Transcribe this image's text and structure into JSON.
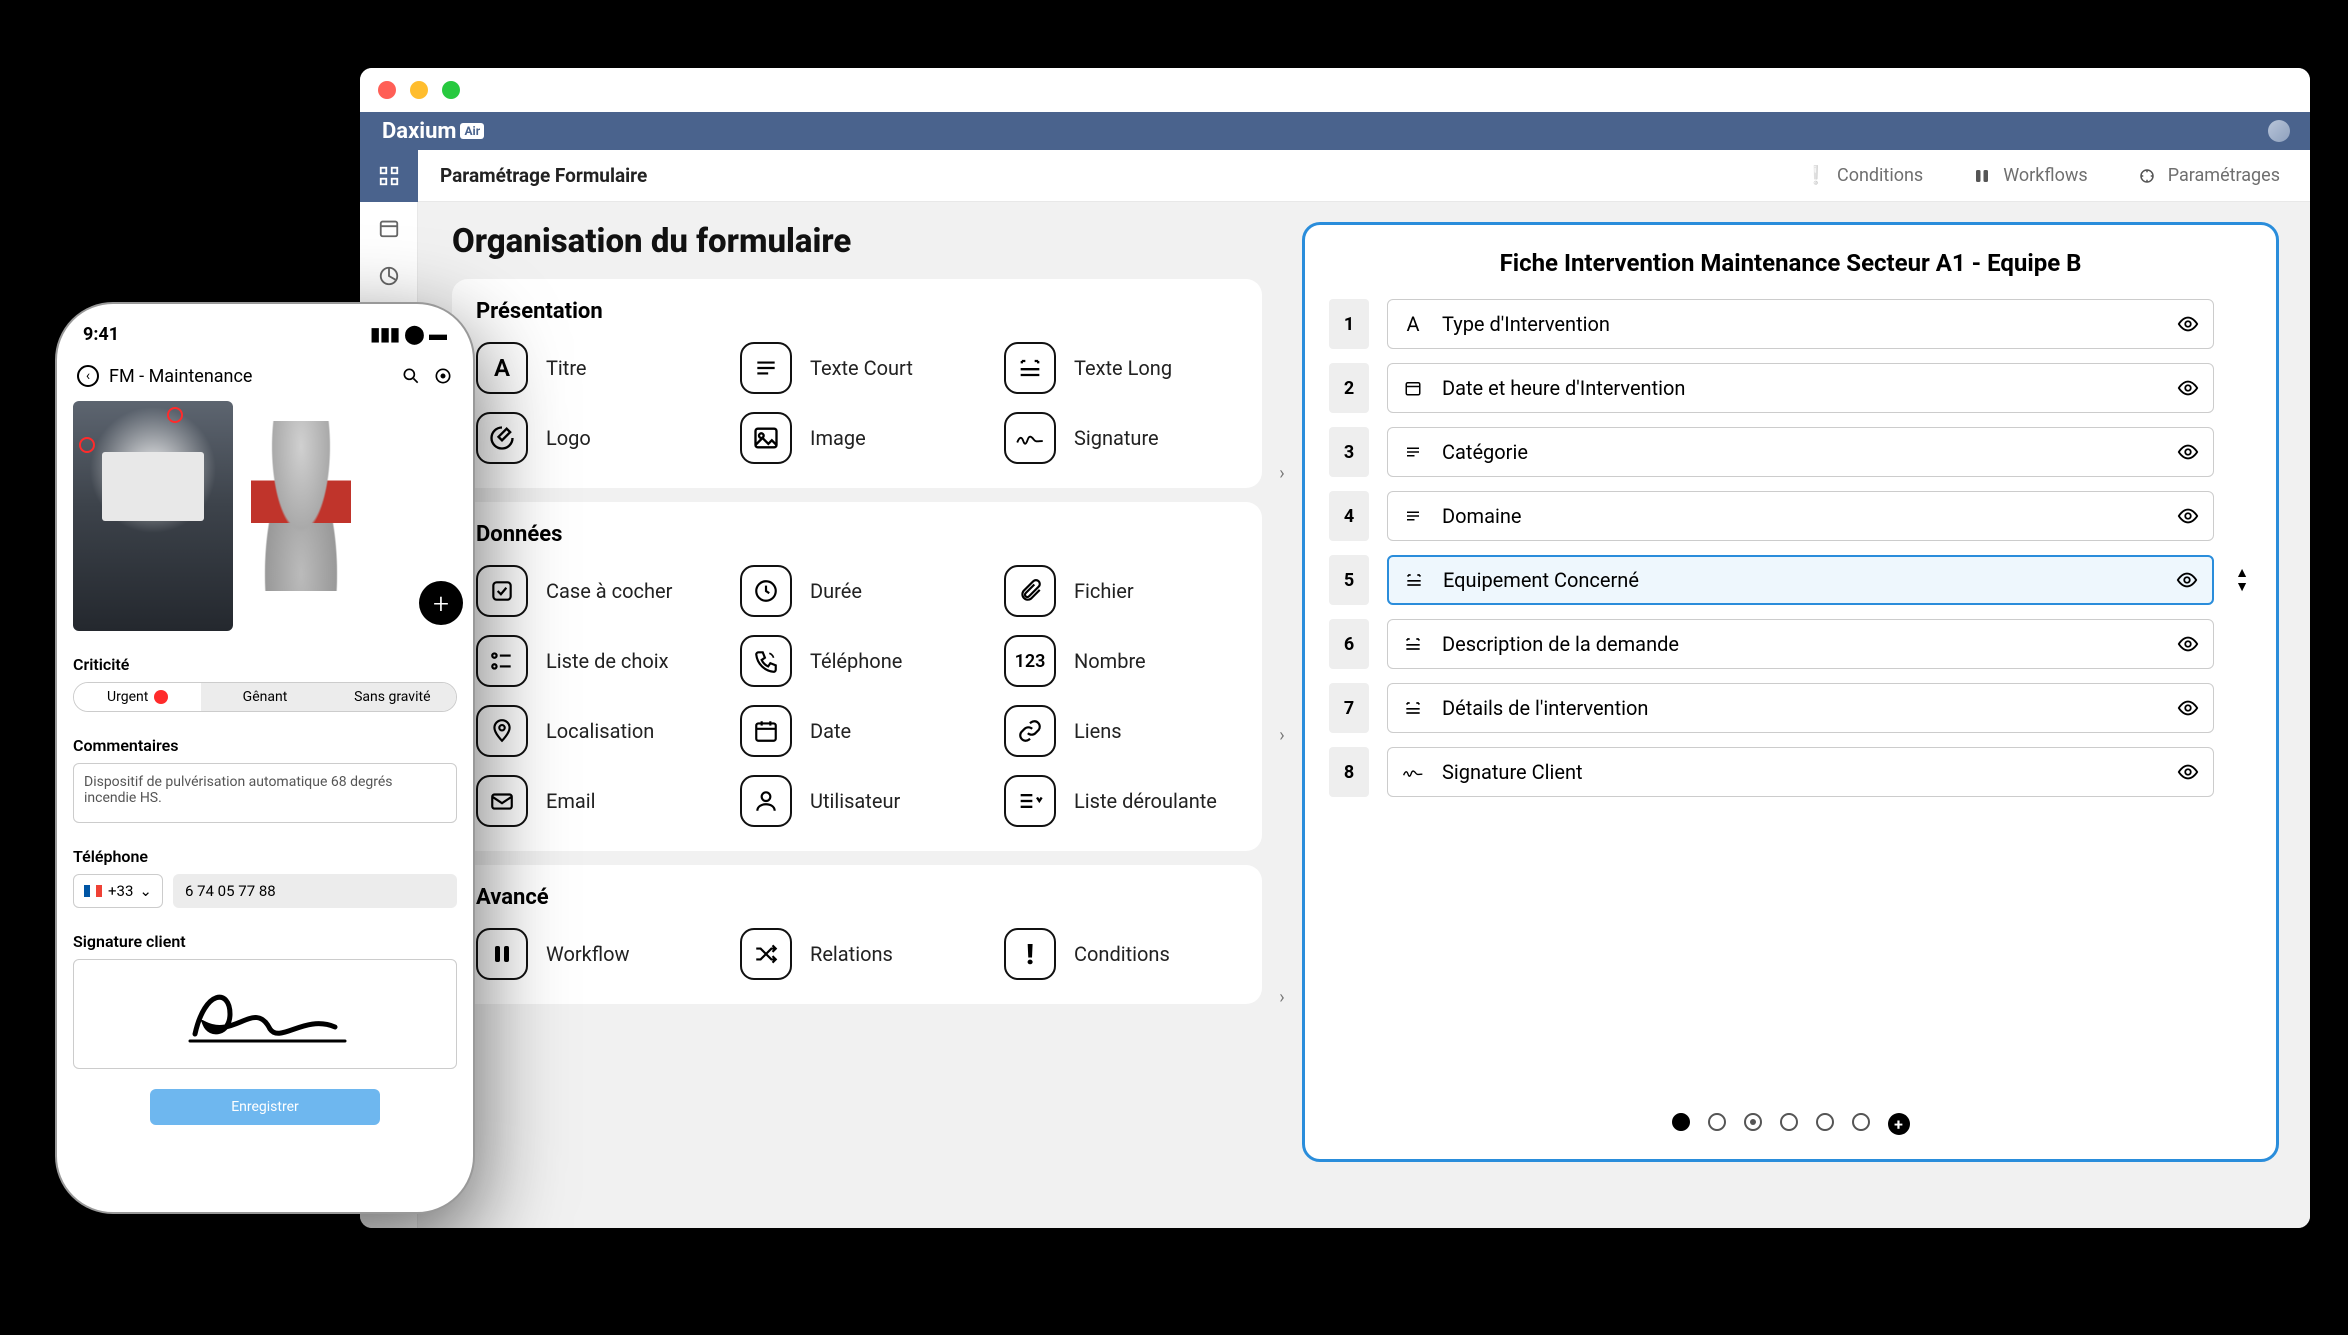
{
  "brand": {
    "name": "Daxium",
    "suffix": "Air"
  },
  "toolbar": {
    "title": "Paramétrage Formulaire",
    "right": {
      "conditions": "Conditions",
      "workflows": "Workflows",
      "parametrages": "Paramétrages"
    }
  },
  "page_title": "Organisation du formulaire",
  "panels": {
    "presentation": {
      "title": "Présentation",
      "items": [
        "Titre",
        "Texte Court",
        "Texte Long",
        "Logo",
        "Image",
        "Signature"
      ]
    },
    "donnees": {
      "title": "Données",
      "items": [
        "Case à cocher",
        "Durée",
        "Fichier",
        "Liste de choix",
        "Téléphone",
        "Nombre",
        "Localisation",
        "Date",
        "Liens",
        "Email",
        "Utilisateur",
        "Liste déroulante"
      ]
    },
    "avance": {
      "title": "Avancé",
      "items": [
        "Workflow",
        "Relations",
        "Conditions"
      ]
    }
  },
  "form_preview": {
    "title": "Fiche Intervention Maintenance Secteur A1 - Equipe B",
    "rows": [
      {
        "n": "1",
        "label": "Type d'Intervention"
      },
      {
        "n": "2",
        "label": "Date et heure d'Intervention"
      },
      {
        "n": "3",
        "label": "Catégorie"
      },
      {
        "n": "4",
        "label": "Domaine"
      },
      {
        "n": "5",
        "label": "Equipement Concerné"
      },
      {
        "n": "6",
        "label": "Description de la demande"
      },
      {
        "n": "7",
        "label": "Détails de l'intervention"
      },
      {
        "n": "8",
        "label": "Signature Client"
      }
    ],
    "selected_index": 4
  },
  "phone": {
    "time": "9:41",
    "app_title": "FM - Maintenance",
    "criticite_label": "Criticité",
    "criticite": {
      "urgent": "Urgent",
      "genant": "Gênant",
      "sans": "Sans gravité"
    },
    "commentaires_label": "Commentaires",
    "commentaires_value": "Dispositif de pulvérisation automatique 68 degrés incendie HS.",
    "telephone_label": "Téléphone",
    "country_code": "+33",
    "phone_value": "6 74 05 77 88",
    "signature_label": "Signature client",
    "save": "Enregistrer"
  },
  "colors": {
    "brand_bg": "#4a638d",
    "accent": "#2a8ddb",
    "panel_bg": "#ffffff",
    "body_bg": "#f1f1f1"
  }
}
